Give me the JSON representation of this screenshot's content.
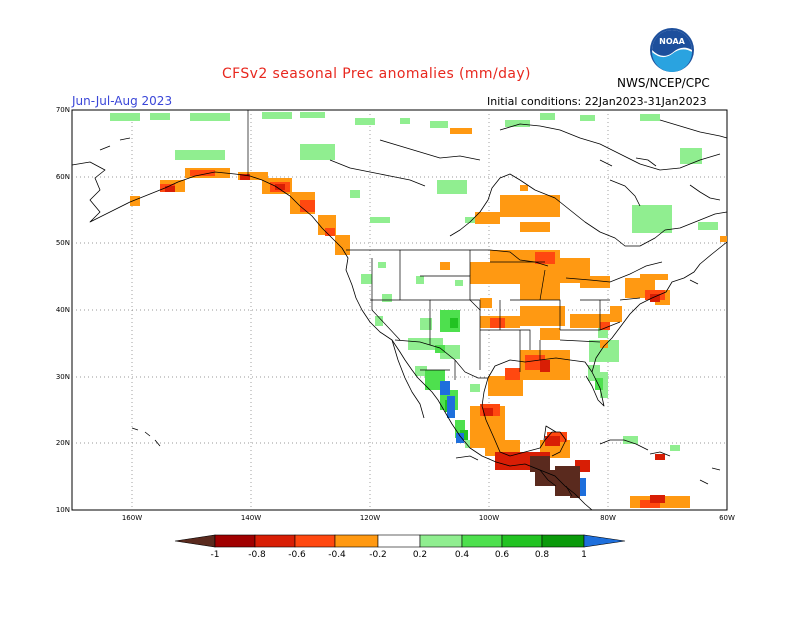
{
  "header": {
    "title": "CFSv2 seasonal Prec anomalies (mm/day)",
    "season": "Jun-Jul-Aug 2023",
    "init": "Initial conditions: 22Jan2023-31Jan2023",
    "agency": "NWS/NCEP/CPC"
  },
  "logo": {
    "text": "NOAA",
    "icon": "noaa-logo"
  },
  "axes": {
    "lat_labels": [
      "70N",
      "60N",
      "50N",
      "40N",
      "30N",
      "20N",
      "10N"
    ],
    "lon_labels": [
      "160W",
      "140W",
      "120W",
      "100W",
      "80W",
      "60W"
    ]
  },
  "colorbar": {
    "labels": [
      "-1",
      "-0.8",
      "-0.6",
      "-0.4",
      "-0.2",
      "0.2",
      "0.4",
      "0.6",
      "0.8",
      "1"
    ],
    "colors": [
      "#5a2a1e",
      "#a00000",
      "#d81e05",
      "#ff4810",
      "#ff9912",
      "#ffffff",
      "#90ee90",
      "#4ee04e",
      "#22c322",
      "#0a9a0a",
      "#1e6fdc"
    ]
  },
  "colors": {
    "dry_light": "#ff9912",
    "dry_mid": "#ff4810",
    "dry_strong": "#d81e05",
    "dry_extreme": "#5a2a1e",
    "wet_light": "#90ee90",
    "wet_mid": "#4ee04e",
    "wet_strong": "#22c322",
    "wet_extreme": "#1e6fdc"
  }
}
